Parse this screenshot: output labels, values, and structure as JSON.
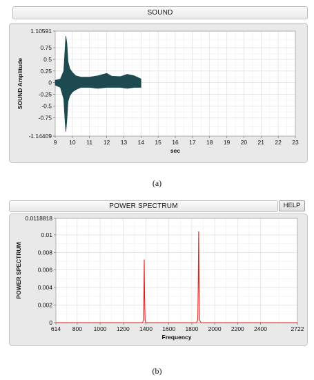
{
  "sound_panel": {
    "title": "SOUND",
    "caption": "(a)"
  },
  "spectrum_panel": {
    "title": "POWER SPECTRUM",
    "help_label": "HELP",
    "caption": "(b)"
  },
  "colors": {
    "sound_trace": "#1c4a50",
    "spectrum_trace": "#e0211b",
    "plot_bg": "#ffffff",
    "panel_bg": "#e9e9e9",
    "grid": "#d9d9d9"
  },
  "chart_data": [
    {
      "type": "line",
      "title": "SOUND",
      "xlabel": "sec",
      "ylabel": "SOUND Amplitude",
      "xlim": [
        9,
        23
      ],
      "ylim": [
        -1.14409,
        1.10591
      ],
      "x_ticks": [
        "9",
        "10",
        "11",
        "12",
        "13",
        "14",
        "15",
        "16",
        "17",
        "18",
        "19",
        "20",
        "21",
        "22",
        "23"
      ],
      "y_ticks": [
        {
          "value": 1.10591,
          "label": "1.10591"
        },
        {
          "value": 0.75,
          "label": "0.75"
        },
        {
          "value": 0.5,
          "label": "0.5"
        },
        {
          "value": 0.25,
          "label": "0.25"
        },
        {
          "value": 0,
          "label": "0"
        },
        {
          "value": -0.25,
          "label": "-0.25"
        },
        {
          "value": -0.5,
          "label": "-0.5"
        },
        {
          "value": -0.75,
          "label": "-0.75"
        },
        {
          "value": -1.14409,
          "label": "-1.14409"
        }
      ],
      "grid": true,
      "series": [
        {
          "x": [
            9.0,
            9.3,
            9.5,
            9.58,
            9.62,
            9.68,
            9.75,
            9.85,
            10.0,
            10.2,
            10.5,
            11.0,
            11.5,
            12.0,
            12.3,
            12.8,
            13.2,
            13.6,
            14.0
          ],
          "upper": [
            0.05,
            0.08,
            0.25,
            0.75,
            1.0,
            0.85,
            0.45,
            0.3,
            0.22,
            0.15,
            0.12,
            0.12,
            0.15,
            0.2,
            0.14,
            0.13,
            0.18,
            0.15,
            0.08
          ],
          "lower": [
            -0.05,
            -0.1,
            -0.35,
            -0.85,
            -1.05,
            -0.8,
            -0.4,
            -0.28,
            -0.2,
            -0.15,
            -0.1,
            -0.1,
            -0.12,
            -0.1,
            -0.1,
            -0.1,
            -0.12,
            -0.1,
            -0.1
          ]
        }
      ]
    },
    {
      "type": "line",
      "title": "POWER SPECTRUM",
      "xlabel": "Frequency",
      "ylabel": "POWER SPECTRUM",
      "xlim": [
        614,
        2722
      ],
      "ylim": [
        0,
        0.0118818
      ],
      "x_ticks": [
        "614",
        "800",
        "1000",
        "1200",
        "1400",
        "1600",
        "1800",
        "2000",
        "2200",
        "2400",
        "2722"
      ],
      "x_tick_values": [
        614,
        800,
        1000,
        1200,
        1400,
        1600,
        1800,
        2000,
        2200,
        2400,
        2722
      ],
      "y_ticks": [
        {
          "value": 0.0118818,
          "label": "0.0118818"
        },
        {
          "value": 0.01,
          "label": "0.01"
        },
        {
          "value": 0.008,
          "label": "0.008"
        },
        {
          "value": 0.006,
          "label": "0.006"
        },
        {
          "value": 0.004,
          "label": "0.004"
        },
        {
          "value": 0.002,
          "label": "0.002"
        },
        {
          "value": 0,
          "label": "0"
        }
      ],
      "grid": true,
      "series": [
        {
          "x": [
            614,
            1370,
            1378,
            1382,
            1385,
            1388,
            1392,
            1398,
            1840,
            1852,
            1856,
            1860,
            1864,
            1868,
            1880,
            2722
          ],
          "y": [
            0,
            0,
            0.0003,
            0.003,
            0.0072,
            0.003,
            0.0003,
            0,
            0,
            0.0003,
            0.004,
            0.0104,
            0.004,
            0.0003,
            0,
            0
          ]
        }
      ]
    }
  ]
}
